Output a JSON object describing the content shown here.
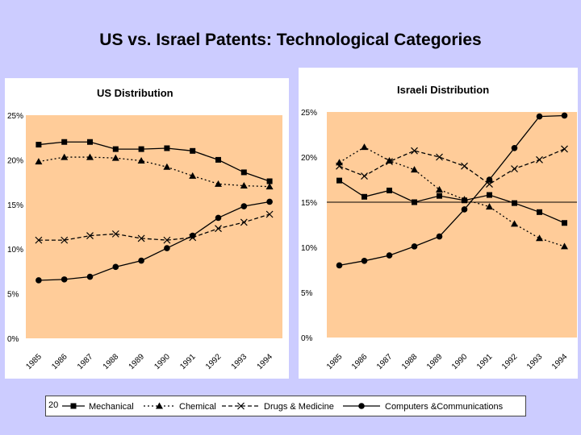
{
  "slide": {
    "title": "US vs. Israel Patents: Technological Categories",
    "number": "20"
  },
  "colors": {
    "background": "#ccccff",
    "panel": "#ffffff",
    "plot_area": "#ffcc99",
    "series_color": "#000000"
  },
  "legend": [
    {
      "name": "Mechanical",
      "marker": "square",
      "dash": "solid"
    },
    {
      "name": "Chemical",
      "marker": "triangle",
      "dash": "dotted"
    },
    {
      "name": "Drugs & Medicine",
      "marker": "x",
      "dash": "dashed"
    },
    {
      "name": "Computers &Communications",
      "marker": "circle",
      "dash": "solid"
    }
  ],
  "chart_data": [
    {
      "type": "line",
      "title": "US  Distribution",
      "categories": [
        "1985",
        "1986",
        "1987",
        "1988",
        "1989",
        "1990",
        "1991",
        "1992",
        "1993",
        "1994"
      ],
      "y_ticks": [
        "0%",
        "5%",
        "10%",
        "15%",
        "20%",
        "25%"
      ],
      "ylim": [
        0,
        25
      ],
      "reference_line": null,
      "series": [
        {
          "name": "Mechanical",
          "values": [
            21.7,
            22.0,
            22.0,
            21.2,
            21.2,
            21.3,
            21.0,
            20.0,
            18.6,
            17.6
          ]
        },
        {
          "name": "Chemical",
          "values": [
            19.8,
            20.3,
            20.3,
            20.2,
            19.9,
            19.2,
            18.2,
            17.3,
            17.1,
            17.0
          ]
        },
        {
          "name": "Drugs & Medicine",
          "values": [
            11.0,
            11.0,
            11.5,
            11.7,
            11.2,
            11.0,
            11.3,
            12.3,
            13.0,
            13.9
          ]
        },
        {
          "name": "Computers &Communications",
          "values": [
            6.5,
            6.6,
            6.9,
            8.0,
            8.7,
            10.1,
            11.5,
            13.5,
            14.8,
            15.3
          ]
        }
      ]
    },
    {
      "type": "line",
      "title": "Israeli Distribution",
      "categories": [
        "1985",
        "1986",
        "1987",
        "1988",
        "1989",
        "1990",
        "1991",
        "1992",
        "1993",
        "1994"
      ],
      "y_ticks": [
        "0%",
        "5%",
        "10%",
        "15%",
        "20%",
        "25%"
      ],
      "ylim": [
        0,
        25
      ],
      "reference_line": 15,
      "series": [
        {
          "name": "Mechanical",
          "values": [
            17.4,
            15.6,
            16.3,
            15.0,
            15.7,
            15.2,
            15.8,
            14.9,
            13.9,
            12.7
          ]
        },
        {
          "name": "Chemical",
          "values": [
            19.4,
            21.1,
            19.6,
            18.6,
            16.4,
            15.3,
            14.5,
            12.6,
            11.0,
            10.1
          ]
        },
        {
          "name": "Drugs & Medicine",
          "values": [
            19.0,
            17.9,
            19.5,
            20.7,
            20.0,
            19.0,
            17.0,
            18.7,
            19.7,
            20.9
          ]
        },
        {
          "name": "Computers &Communications",
          "values": [
            8.0,
            8.5,
            9.1,
            10.1,
            11.2,
            14.2,
            17.5,
            21.0,
            24.5,
            24.6
          ]
        }
      ]
    }
  ]
}
